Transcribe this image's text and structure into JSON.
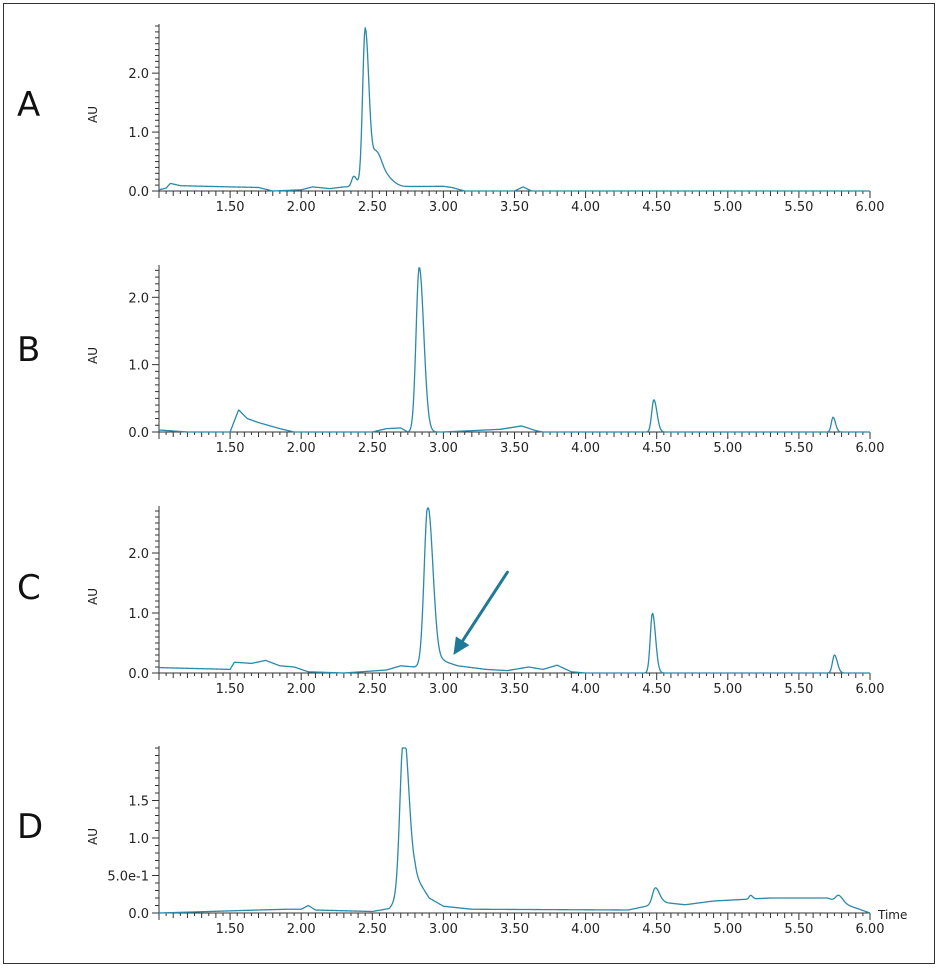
{
  "colors": {
    "trace": "#2a8aa8",
    "arrow": "#1e7a96",
    "axis": "#333333"
  },
  "chart_data": [
    {
      "type": "line",
      "panel_label": "A",
      "ylabel": "AU",
      "xlabel": "",
      "xlim": [
        1.0,
        6.0
      ],
      "ylim": [
        0,
        2.8
      ],
      "x_ticks": [
        "1.50",
        "2.00",
        "2.50",
        "3.00",
        "3.50",
        "4.00",
        "4.50",
        "5.00",
        "5.50",
        "6.00"
      ],
      "y_ticks": [
        {
          "value": 0.0,
          "label": "0.0"
        },
        {
          "value": 1.0,
          "label": "1.0"
        },
        {
          "value": 2.0,
          "label": "2.0"
        }
      ],
      "baseline": [
        [
          1.0,
          0.02
        ],
        [
          1.05,
          0.05
        ],
        [
          1.08,
          0.13
        ],
        [
          1.15,
          0.09
        ],
        [
          1.5,
          0.07
        ],
        [
          1.7,
          0.06
        ],
        [
          1.8,
          0.0
        ],
        [
          2.0,
          0.02
        ],
        [
          2.08,
          0.07
        ],
        [
          2.2,
          0.04
        ],
        [
          2.3,
          0.07
        ],
        [
          3.0,
          0.08
        ],
        [
          3.06,
          0.06
        ],
        [
          3.15,
          0.0
        ],
        [
          3.5,
          0.0
        ],
        [
          3.56,
          0.07
        ],
        [
          3.62,
          0.0
        ],
        [
          6.0,
          0.0
        ]
      ],
      "peaks": [
        {
          "rt": 2.45,
          "height": 2.68,
          "width": 0.018
        },
        {
          "rt": 2.53,
          "height": 0.58,
          "width": 0.03
        },
        {
          "rt": 2.37,
          "height": 0.18,
          "width": 0.015
        },
        {
          "rt": 2.62,
          "height": 0.1,
          "width": 0.03
        }
      ]
    },
    {
      "type": "line",
      "panel_label": "B",
      "ylabel": "AU",
      "xlabel": "",
      "xlim": [
        1.0,
        6.0
      ],
      "ylim": [
        0,
        2.45
      ],
      "x_ticks": [
        "1.50",
        "2.00",
        "2.50",
        "3.00",
        "3.50",
        "4.00",
        "4.50",
        "5.00",
        "5.50",
        "6.00"
      ],
      "y_ticks": [
        {
          "value": 0.0,
          "label": "0.0"
        },
        {
          "value": 1.0,
          "label": "1.0"
        },
        {
          "value": 2.0,
          "label": "2.0"
        }
      ],
      "baseline": [
        [
          1.0,
          0.03
        ],
        [
          1.2,
          0.0
        ],
        [
          1.5,
          0.0
        ],
        [
          1.56,
          0.33
        ],
        [
          1.62,
          0.2
        ],
        [
          1.7,
          0.14
        ],
        [
          1.85,
          0.05
        ],
        [
          1.95,
          0.0
        ],
        [
          2.5,
          0.0
        ],
        [
          2.6,
          0.05
        ],
        [
          2.7,
          0.06
        ],
        [
          2.75,
          0.0
        ],
        [
          3.0,
          0.0
        ],
        [
          3.4,
          0.04
        ],
        [
          3.55,
          0.09
        ],
        [
          3.65,
          0.02
        ],
        [
          3.7,
          0.0
        ],
        [
          6.0,
          0.0
        ]
      ],
      "peaks": [
        {
          "rt": 2.83,
          "height": 2.45,
          "width": 0.022
        },
        {
          "rt": 4.48,
          "height": 0.48,
          "width": 0.015
        },
        {
          "rt": 5.74,
          "height": 0.22,
          "width": 0.012
        }
      ]
    },
    {
      "type": "line",
      "panel_label": "C",
      "ylabel": "AU",
      "xlabel": "",
      "xlim": [
        1.0,
        6.0
      ],
      "ylim": [
        0,
        2.75
      ],
      "x_ticks": [
        "1.50",
        "2.00",
        "2.50",
        "3.00",
        "3.50",
        "4.00",
        "4.50",
        "5.00",
        "5.50",
        "6.00"
      ],
      "y_ticks": [
        {
          "value": 0.0,
          "label": "0.0"
        },
        {
          "value": 1.0,
          "label": "1.0"
        },
        {
          "value": 2.0,
          "label": "2.0"
        }
      ],
      "baseline": [
        [
          1.0,
          0.09
        ],
        [
          1.5,
          0.06
        ],
        [
          1.53,
          0.18
        ],
        [
          1.65,
          0.16
        ],
        [
          1.75,
          0.21
        ],
        [
          1.85,
          0.12
        ],
        [
          1.95,
          0.1
        ],
        [
          2.05,
          0.02
        ],
        [
          2.3,
          0.0
        ],
        [
          2.6,
          0.05
        ],
        [
          2.7,
          0.12
        ],
        [
          2.8,
          0.1
        ],
        [
          3.0,
          0.2
        ],
        [
          3.1,
          0.12
        ],
        [
          3.3,
          0.06
        ],
        [
          3.45,
          0.04
        ],
        [
          3.6,
          0.1
        ],
        [
          3.7,
          0.06
        ],
        [
          3.8,
          0.13
        ],
        [
          3.9,
          0.02
        ],
        [
          4.0,
          0.0
        ],
        [
          6.0,
          0.0
        ]
      ],
      "peaks": [
        {
          "rt": 2.89,
          "height": 2.65,
          "width": 0.025
        },
        {
          "rt": 4.47,
          "height": 1.0,
          "width": 0.015
        },
        {
          "rt": 5.75,
          "height": 0.3,
          "width": 0.014
        }
      ],
      "annotation": {
        "type": "arrow",
        "from": [
          3.45,
          1.68
        ],
        "to": [
          3.07,
          0.3
        ]
      }
    },
    {
      "type": "line",
      "panel_label": "D",
      "ylabel": "AU",
      "xlabel": "Time",
      "xlim": [
        1.0,
        6.0
      ],
      "ylim": [
        0,
        2.2
      ],
      "x_ticks": [
        "1.50",
        "2.00",
        "2.50",
        "3.00",
        "3.50",
        "4.00",
        "4.50",
        "5.00",
        "5.50",
        "6.00"
      ],
      "y_ticks": [
        {
          "value": 0.0,
          "label": "0.0"
        },
        {
          "value": 0.5,
          "label": "5.0e-1"
        },
        {
          "value": 1.0,
          "label": "1.0"
        },
        {
          "value": 1.5,
          "label": "1.5"
        }
      ],
      "baseline": [
        [
          1.0,
          0.0
        ],
        [
          1.7,
          0.04
        ],
        [
          1.9,
          0.05
        ],
        [
          2.0,
          0.05
        ],
        [
          2.05,
          0.1
        ],
        [
          2.1,
          0.04
        ],
        [
          2.5,
          0.02
        ],
        [
          2.62,
          0.06
        ],
        [
          2.8,
          0.5
        ],
        [
          2.9,
          0.2
        ],
        [
          3.0,
          0.09
        ],
        [
          3.2,
          0.05
        ],
        [
          4.3,
          0.04
        ],
        [
          4.45,
          0.1
        ],
        [
          4.55,
          0.14
        ],
        [
          4.7,
          0.11
        ],
        [
          4.9,
          0.16
        ],
        [
          5.1,
          0.18
        ],
        [
          5.3,
          0.2
        ],
        [
          5.7,
          0.2
        ],
        [
          5.85,
          0.1
        ],
        [
          6.0,
          0.0
        ]
      ],
      "peaks": [
        {
          "rt": 2.72,
          "height": 2.1,
          "width": 0.025
        },
        {
          "rt": 4.49,
          "height": 0.22,
          "width": 0.02
        },
        {
          "rt": 5.16,
          "height": 0.05,
          "width": 0.01
        },
        {
          "rt": 5.78,
          "height": 0.09,
          "width": 0.02
        }
      ]
    }
  ]
}
